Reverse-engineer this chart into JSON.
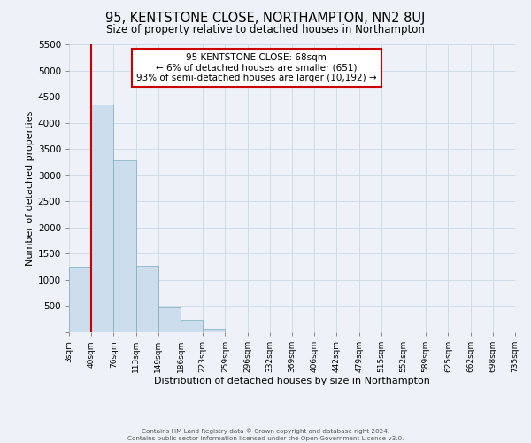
{
  "title": "95, KENTSTONE CLOSE, NORTHAMPTON, NN2 8UJ",
  "subtitle": "Size of property relative to detached houses in Northampton",
  "xlabel": "Distribution of detached houses by size in Northampton",
  "ylabel": "Number of detached properties",
  "bar_values": [
    1250,
    4350,
    3290,
    1275,
    480,
    235,
    75,
    0,
    0,
    0,
    0,
    0,
    0,
    0,
    0,
    0,
    0,
    0,
    0,
    0
  ],
  "bin_labels": [
    "3sqm",
    "40sqm",
    "76sqm",
    "113sqm",
    "149sqm",
    "186sqm",
    "223sqm",
    "259sqm",
    "296sqm",
    "332sqm",
    "369sqm",
    "406sqm",
    "442sqm",
    "479sqm",
    "515sqm",
    "552sqm",
    "589sqm",
    "625sqm",
    "662sqm",
    "698sqm",
    "735sqm"
  ],
  "bar_color": "#ccdded",
  "bar_edge_color": "#7aaabb",
  "grid_color": "#d0dce8",
  "background_color": "#eef2f8",
  "marker_color": "#cc0000",
  "ylim": [
    0,
    5500
  ],
  "yticks": [
    0,
    500,
    1000,
    1500,
    2000,
    2500,
    3000,
    3500,
    4000,
    4500,
    5000,
    5500
  ],
  "annotation_line1": "95 KENTSTONE CLOSE: 68sqm",
  "annotation_line2": "← 6% of detached houses are smaller (651)",
  "annotation_line3": "93% of semi-detached houses are larger (10,192) →",
  "footer1": "Contains HM Land Registry data © Crown copyright and database right 2024.",
  "footer2": "Contains public sector information licensed under the Open Government Licence v3.0."
}
